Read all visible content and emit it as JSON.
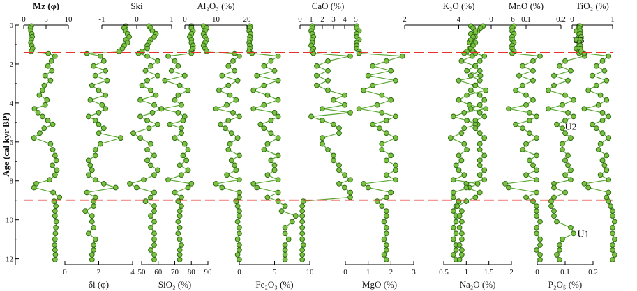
{
  "chart_data": {
    "type": "line",
    "orientation": "vertical-depth",
    "y_axis": {
      "label": "Age (cal kyr BP)",
      "range": [
        0,
        12.3
      ],
      "ticks": [
        0,
        2,
        4,
        6,
        8,
        10,
        12
      ],
      "inverted": true
    },
    "colors": {
      "series_line": "#5aa832",
      "marker_fill": "#7cc242",
      "marker_edge": "#2f6b12",
      "boundary": "#e5322b"
    },
    "boundaries": [
      1.4,
      9.0
    ],
    "units": [
      {
        "label": "U3",
        "age": 0.75
      },
      {
        "label": "U2",
        "age": 5.2
      },
      {
        "label": "U1",
        "age": 10.7
      }
    ],
    "ages": [
      0.05,
      0.15,
      0.3,
      0.45,
      0.6,
      0.75,
      0.9,
      1.05,
      1.2,
      1.35,
      1.45,
      1.6,
      1.85,
      2.1,
      2.35,
      2.6,
      2.85,
      3.1,
      3.35,
      3.6,
      3.85,
      4.1,
      4.3,
      4.5,
      4.7,
      4.9,
      5.1,
      5.3,
      5.55,
      5.8,
      6.1,
      6.4,
      6.7,
      6.95,
      7.2,
      7.45,
      7.7,
      7.95,
      8.15,
      8.35,
      8.6,
      8.85,
      9.05,
      9.3,
      9.55,
      9.8,
      10.1,
      10.4,
      10.7,
      11.0,
      11.3,
      11.55,
      11.8,
      12.05
    ],
    "tracks": [
      {
        "title": "Mz (φ)",
        "axis_pos": "top",
        "range": [
          0,
          10
        ],
        "ticks": [
          0,
          5,
          10
        ],
        "tick_labels": [
          "0",
          "5",
          "10"
        ],
        "values": [
          1.7,
          1.5,
          1.6,
          1.8,
          1.9,
          1.7,
          1.6,
          1.8,
          2.0,
          1.7,
          5.5,
          7.0,
          6.2,
          5.4,
          6.3,
          4.8,
          6.0,
          4.6,
          4.2,
          3.5,
          5.2,
          4.8,
          2.4,
          3.2,
          4.2,
          5.4,
          6.5,
          4.6,
          3.6,
          2.3,
          6.0,
          6.5,
          7.0,
          7.3,
          6.4,
          7.4,
          7.0,
          5.8,
          2.8,
          2.3,
          6.6,
          8.0,
          6.8,
          7.2,
          7.0,
          7.0,
          7.3,
          7.2,
          7.1,
          7.0,
          6.9,
          7.0,
          7.1,
          7.0
        ]
      },
      {
        "title": "δi (φ)",
        "axis_pos": "bottom",
        "range": [
          0,
          4
        ],
        "ticks": [
          0,
          2,
          4
        ],
        "tick_labels": [
          "0",
          "2",
          "4"
        ],
        "values": [
          3.6,
          3.5,
          3.6,
          3.7,
          3.8,
          3.6,
          3.7,
          3.5,
          3.4,
          3.2,
          1.3,
          2.1,
          2.3,
          1.7,
          2.4,
          1.8,
          2.5,
          1.6,
          2.0,
          2.4,
          1.5,
          2.2,
          2.4,
          2.0,
          1.4,
          1.8,
          2.0,
          2.3,
          2.0,
          3.3,
          2.1,
          1.8,
          1.8,
          1.4,
          1.5,
          1.6,
          1.4,
          1.8,
          2.3,
          3.0,
          1.3,
          1.8,
          1.7,
          1.7,
          1.2,
          1.6,
          1.6,
          1.7,
          1.4,
          1.8,
          1.7,
          1.7,
          1.6,
          1.6
        ]
      },
      {
        "title": "Ski",
        "axis_pos": "top",
        "range": [
          -1,
          1
        ],
        "ticks": [
          -1,
          0,
          1
        ],
        "tick_labels": [
          "-1",
          "0",
          "1"
        ],
        "title_color": "#777777",
        "values": [
          0.35,
          0.4,
          0.45,
          0.55,
          0.5,
          0.4,
          0.35,
          0.3,
          0.3,
          0.15,
          0.05,
          0.3,
          0.6,
          0.4,
          0.25,
          0.6,
          0.3,
          0.15,
          0.4,
          0.55,
          0.1,
          0.5,
          0.7,
          0.45,
          0.1,
          0.3,
          0.6,
          0.35,
          -0.1,
          0.1,
          0.4,
          0.3,
          0.5,
          0.3,
          0.4,
          0.6,
          0.5,
          0.2,
          -0.2,
          0.0,
          0.5,
          0.4,
          0.25,
          0.5,
          0.5,
          0.4,
          0.5,
          0.4,
          0.5,
          0.5,
          0.5,
          0.4,
          0.5,
          0.5
        ]
      },
      {
        "title": "SiO₂ (%)",
        "axis_pos": "bottom",
        "range": [
          50,
          90
        ],
        "ticks": [
          50,
          60,
          70,
          80,
          90
        ],
        "tick_labels": [
          "50",
          "60",
          "70",
          "80",
          "90"
        ],
        "values": [
          80,
          80,
          81,
          80,
          79,
          80,
          80,
          81,
          81,
          80,
          80,
          66,
          70,
          72,
          68,
          76,
          64,
          73,
          78,
          72,
          70,
          74,
          62,
          72,
          76,
          75,
          67,
          74,
          74,
          70,
          76,
          78,
          75,
          77,
          73,
          78,
          74,
          66,
          80,
          78,
          70,
          74,
          72,
          74,
          73,
          73,
          72,
          73,
          72,
          73,
          74,
          73,
          73,
          73
        ]
      },
      {
        "title": "Al₂O₃ (%)",
        "axis_pos": "top",
        "range": [
          0,
          20
        ],
        "ticks": [
          0,
          10,
          20
        ],
        "tick_labels": [
          "0",
          "10",
          "20"
        ],
        "values": [
          6.0,
          7.0,
          6.5,
          6.0,
          6.5,
          7.0,
          6.5,
          6.0,
          6.5,
          7.0,
          16.0,
          17.5,
          15.5,
          14.0,
          16.0,
          12.0,
          17.0,
          14.0,
          11.0,
          14.5,
          16.5,
          13.5,
          10.0,
          15.5,
          17.5,
          14.0,
          11.5,
          13.0,
          15.0,
          17.0,
          14.5,
          14.0,
          17.5,
          15.0,
          16.0,
          16.5,
          13.5,
          17.5,
          10.0,
          12.0,
          17.5,
          17.5,
          16.5,
          17.0,
          17.5,
          17.5,
          17.0,
          17.5,
          17.5,
          17.0,
          17.5,
          17.5,
          17.0,
          17.5
        ]
      },
      {
        "title": "Fe₂O₃ (%)",
        "axis_pos": "bottom",
        "range": [
          0,
          10
        ],
        "ticks": [
          0,
          5,
          10
        ],
        "tick_labels": [
          "0",
          "5",
          "10"
        ],
        "values": [
          1.5,
          1.5,
          1.4,
          1.6,
          1.5,
          1.5,
          1.4,
          1.5,
          1.5,
          1.4,
          1.8,
          5.5,
          4.5,
          3.5,
          5.0,
          2.5,
          5.5,
          3.5,
          2.0,
          4.0,
          5.5,
          3.5,
          2.0,
          5.0,
          5.5,
          4.5,
          3.0,
          3.5,
          4.5,
          5.5,
          4.0,
          3.5,
          5.5,
          4.5,
          5.0,
          5.0,
          4.0,
          5.5,
          2.0,
          2.5,
          5.5,
          4.0,
          5.5,
          6.5,
          6.0,
          8.0,
          7.5,
          6.5,
          6.5,
          7.0,
          6.5,
          6.5,
          6.5,
          6.5
        ]
      },
      {
        "title": "CaO (%)",
        "axis_pos": "top",
        "range": [
          0,
          5
        ],
        "ticks": [
          0,
          1,
          2,
          3,
          4,
          5
        ],
        "tick_labels": [
          "0",
          "1",
          "2",
          "3",
          "4",
          "5"
        ],
        "values": [
          1.1,
          1.1,
          1.0,
          1.1,
          1.2,
          1.1,
          1.1,
          1.0,
          1.2,
          1.1,
          1.2,
          4.5,
          2.5,
          1.5,
          2.5,
          1.5,
          2.5,
          1.5,
          2.5,
          4.0,
          3.0,
          4.0,
          2.0,
          4.5,
          1.0,
          2.0,
          3.0,
          3.5,
          3.5,
          2.0,
          2.0,
          2.5,
          3.0,
          3.0,
          3.5,
          3.5,
          4.0,
          4.5,
          3.5,
          4.0,
          4.5,
          4.5,
          0.3,
          0.2,
          0.2,
          0.2,
          0.2,
          0.2,
          0.2,
          0.2,
          0.3,
          0.2,
          0.2,
          0.2
        ]
      },
      {
        "title": "MgO (%)",
        "axis_pos": "bottom",
        "range": [
          0,
          3
        ],
        "ticks": [
          0,
          1,
          2,
          3
        ],
        "tick_labels": [
          "0",
          "1",
          "2",
          "3"
        ],
        "values": [
          0.5,
          0.5,
          0.6,
          0.5,
          0.5,
          0.6,
          0.5,
          0.5,
          0.5,
          0.6,
          0.6,
          2.5,
          1.8,
          1.2,
          2.0,
          1.0,
          2.2,
          1.2,
          0.8,
          1.6,
          2.0,
          1.4,
          0.6,
          1.6,
          2.2,
          1.8,
          1.2,
          1.5,
          1.8,
          2.2,
          1.6,
          1.6,
          2.0,
          1.8,
          2.2,
          2.2,
          1.8,
          2.2,
          0.8,
          1.0,
          2.0,
          1.8,
          1.4,
          1.6,
          1.8,
          1.8,
          1.7,
          1.8,
          1.8,
          1.7,
          1.8,
          1.8,
          1.7,
          1.8
        ]
      },
      {
        "title": "K₂O (%)",
        "axis_pos": "top",
        "range": [
          2,
          6
        ],
        "ticks": [
          2,
          4,
          6
        ],
        "tick_labels": [
          "2",
          "4",
          "6"
        ],
        "values": [
          4.9,
          4.8,
          4.7,
          4.6,
          4.6,
          4.5,
          4.4,
          4.5,
          4.4,
          4.3,
          4.2,
          4.5,
          4.1,
          4.6,
          4.3,
          4.8,
          4.0,
          4.6,
          5.0,
          4.3,
          4.0,
          4.4,
          5.0,
          4.2,
          3.8,
          4.3,
          4.7,
          4.2,
          4.1,
          3.7,
          4.2,
          4.3,
          4.0,
          4.1,
          3.9,
          4.0,
          4.2,
          3.8,
          4.7,
          4.4,
          3.8,
          3.8,
          4.0,
          3.9,
          3.8,
          3.9,
          3.9,
          3.8,
          3.9,
          3.8,
          3.9,
          3.9,
          3.8,
          3.9
        ]
      },
      {
        "title": "Na₂O (%)",
        "axis_pos": "bottom",
        "range": [
          0.5,
          2
        ],
        "ticks": [
          0.5,
          1,
          1.5,
          2
        ],
        "tick_labels": [
          "0.5",
          "1",
          "1.5",
          "2"
        ],
        "values": [
          1.1,
          1.15,
          1.2,
          1.1,
          1.15,
          1.1,
          1.2,
          1.15,
          1.1,
          1.15,
          1.2,
          1.4,
          1.3,
          1.2,
          1.3,
          1.1,
          1.3,
          1.2,
          1.1,
          1.3,
          1.4,
          1.3,
          1.1,
          1.3,
          1.4,
          1.2,
          1.2,
          1.2,
          1.3,
          1.4,
          1.3,
          1.3,
          1.4,
          1.3,
          1.3,
          1.4,
          1.3,
          1.4,
          1.0,
          1.0,
          1.3,
          1.2,
          1.0,
          0.8,
          0.9,
          0.85,
          0.9,
          0.85,
          0.9,
          0.9,
          0.85,
          0.9,
          0.9,
          0.85
        ]
      },
      {
        "title": "MnO (%)",
        "axis_pos": "top",
        "range": [
          0,
          0.2
        ],
        "ticks": [
          0,
          0.1,
          0.2
        ],
        "tick_labels": [
          "0",
          "0.1",
          "0.2"
        ],
        "values": [
          0.065,
          0.06,
          0.06,
          0.065,
          0.06,
          0.06,
          0.065,
          0.06,
          0.06,
          0.065,
          0.06,
          0.14,
          0.12,
          0.09,
          0.12,
          0.08,
          0.12,
          0.09,
          0.07,
          0.1,
          0.12,
          0.1,
          0.05,
          0.11,
          0.13,
          0.11,
          0.07,
          0.09,
          0.11,
          0.13,
          0.1,
          0.09,
          0.13,
          0.11,
          0.12,
          0.13,
          0.1,
          0.13,
          0.04,
          0.05,
          0.13,
          0.1,
          0.12,
          0.13,
          0.13,
          0.13,
          0.14,
          0.13,
          0.13,
          0.14,
          0.14,
          0.13,
          0.14,
          0.14
        ]
      },
      {
        "title": "P₂O₅ (%)",
        "axis_pos": "bottom",
        "range": [
          0,
          0.2
        ],
        "ticks": [
          0,
          0.1,
          0.2
        ],
        "tick_labels": [
          "0",
          "0.1",
          "0.2"
        ],
        "values": [
          0.15,
          0.15,
          0.14,
          0.15,
          0.15,
          0.14,
          0.15,
          0.15,
          0.14,
          0.15,
          0.15,
          0.17,
          0.1,
          0.08,
          0.12,
          0.06,
          0.11,
          0.06,
          0.04,
          0.1,
          0.13,
          0.09,
          0.04,
          0.11,
          0.13,
          0.1,
          0.07,
          0.09,
          0.1,
          0.12,
          0.09,
          0.09,
          0.11,
          0.1,
          0.11,
          0.12,
          0.1,
          0.12,
          0.06,
          0.06,
          0.1,
          0.06,
          0.05,
          0.05,
          0.06,
          0.06,
          0.07,
          0.12,
          0.13,
          0.09,
          0.08,
          0.08,
          0.07,
          0.08
        ]
      },
      {
        "title": "TiO₂ (%)",
        "axis_pos": "top",
        "range": [
          0,
          1
        ],
        "ticks": [
          0,
          1
        ],
        "tick_labels": [
          "0",
          "1"
        ],
        "values": [
          0.2,
          0.18,
          0.2,
          0.2,
          0.22,
          0.2,
          0.18,
          0.2,
          0.2,
          0.22,
          0.3,
          0.9,
          0.75,
          0.6,
          0.8,
          0.5,
          0.85,
          0.6,
          0.4,
          0.7,
          0.85,
          0.65,
          0.3,
          0.75,
          0.9,
          0.75,
          0.5,
          0.6,
          0.75,
          0.9,
          0.7,
          0.65,
          0.85,
          0.75,
          0.8,
          0.85,
          0.7,
          0.9,
          0.3,
          0.4,
          0.9,
          0.85,
          0.9,
          0.95,
          1.0,
          1.0,
          1.05,
          1.0,
          1.0,
          1.05,
          1.0,
          1.0,
          1.05,
          1.0
        ]
      }
    ]
  }
}
